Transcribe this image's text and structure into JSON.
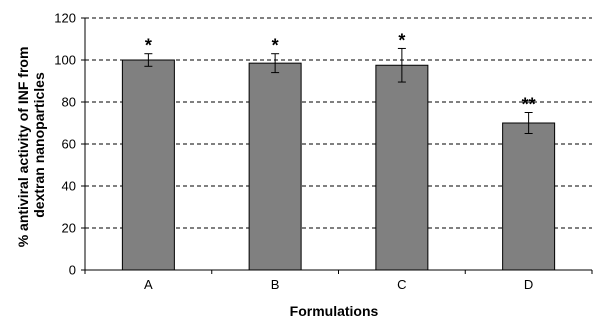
{
  "chart_data": {
    "type": "bar",
    "categories": [
      "A",
      "B",
      "C",
      "D"
    ],
    "values": [
      100,
      98.5,
      97.5,
      70
    ],
    "error": [
      3,
      4.5,
      8,
      5
    ],
    "annotations": [
      "*",
      "*",
      "*",
      "**"
    ],
    "xlabel": "Formulations",
    "ylabel_lines": [
      "% antiviral activity of INF from",
      "dextran nanoparticles"
    ],
    "ylim": [
      0,
      120
    ],
    "yticks": [
      0,
      20,
      40,
      60,
      80,
      100,
      120
    ],
    "grid": "dashed-horizontal",
    "colors": {
      "bar": "#808080",
      "bar_edge": "#000000",
      "grid": "#000000"
    }
  }
}
